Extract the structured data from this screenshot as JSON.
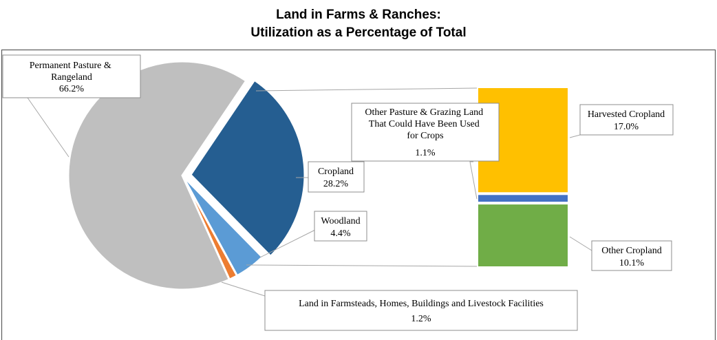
{
  "chart_data": {
    "type": "pie",
    "title": "Land in Farms & Ranches:",
    "subtitle": "Utilization as a Percentage of Total",
    "pie": {
      "slices": [
        {
          "label": "Permanent Pasture & Rangeland",
          "value": 66.2,
          "value_text": "66.2%",
          "color": "#bfbfbf",
          "exploded": false
        },
        {
          "label": "Cropland",
          "value": 28.2,
          "value_text": "28.2%",
          "color": "#255e91",
          "exploded": true
        },
        {
          "label": "Woodland",
          "value": 4.4,
          "value_text": "4.4%",
          "color": "#5b9bd5",
          "exploded": false
        },
        {
          "label": "Land in Farmsteads, Homes, Buildings and Livestock Facilities",
          "value": 1.2,
          "value_text": "1.2%",
          "color": "#ed7d31",
          "exploded": false
        }
      ]
    },
    "breakdown": {
      "parent": "Cropland",
      "type": "stacked-bar",
      "segments": [
        {
          "label": "Other Cropland",
          "value": 10.1,
          "value_text": "10.1%",
          "color": "#70ad47"
        },
        {
          "label": "Other Pasture & Grazing Land That Could Have Been Used for Crops",
          "value": 1.1,
          "value_text": "1.1%",
          "color": "#4472c4"
        },
        {
          "label": "Harvested Cropland",
          "value": 17.0,
          "value_text": "17.0%",
          "color": "#ffc000"
        }
      ]
    }
  }
}
